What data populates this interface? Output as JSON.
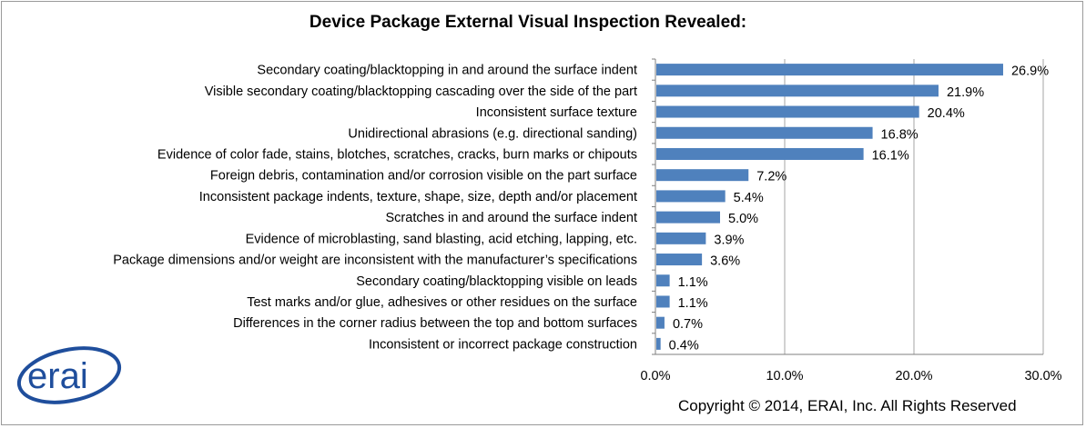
{
  "chart_data": {
    "type": "bar",
    "orientation": "horizontal",
    "title": "Device Package External Visual Inspection Revealed:",
    "categories": [
      "Secondary coating/blacktopping  in and around the surface indent",
      "Visible secondary coating/blacktopping  cascading over the side of the part",
      "Inconsistent surface texture",
      "Unidirectional abrasions (e.g. directional sanding)",
      "Evidence of color fade, stains,  blotches, scratches, cracks, burn marks or chipouts",
      "Foreign debris, contamination  and/or corrosion visible on the part surface",
      "Inconsistent package indents, texture, shape, size, depth and/or placement",
      "Scratches in and around the surface indent",
      "Evidence of microblasting, sand blasting, acid etching, lapping,  etc.",
      "Package dimensions and/or weight are inconsistent with the manufacturer’s specifications",
      "Secondary coating/blacktopping visible on leads",
      "Test marks and/or glue, adhesives or other residues on the surface",
      "Differences in the corner radius between the top and bottom surfaces",
      "Inconsistent or incorrect package construction"
    ],
    "values": [
      26.9,
      21.9,
      20.4,
      16.8,
      16.1,
      7.2,
      5.4,
      5.0,
      3.9,
      3.6,
      1.1,
      1.1,
      0.7,
      0.4
    ],
    "value_labels": [
      "26.9%",
      "21.9%",
      "20.4%",
      "16.8%",
      "16.1%",
      "7.2%",
      "5.4%",
      "5.0%",
      "3.9%",
      "3.6%",
      "1.1%",
      "1.1%",
      "0.7%",
      "0.4%"
    ],
    "xlim": [
      0,
      30
    ],
    "xticks": [
      "0.0%",
      "10.0%",
      "20.0%",
      "30.0%"
    ],
    "xtick_values": [
      0,
      10,
      20,
      30
    ],
    "grid": "vertical",
    "bar_color": "#4f81bd"
  },
  "footer": {
    "copyright": "Copyright  © 2014,  ERAI, Inc.  All Rights Reserved",
    "logo_text": "erai",
    "logo_color": "#1f4e9c"
  }
}
